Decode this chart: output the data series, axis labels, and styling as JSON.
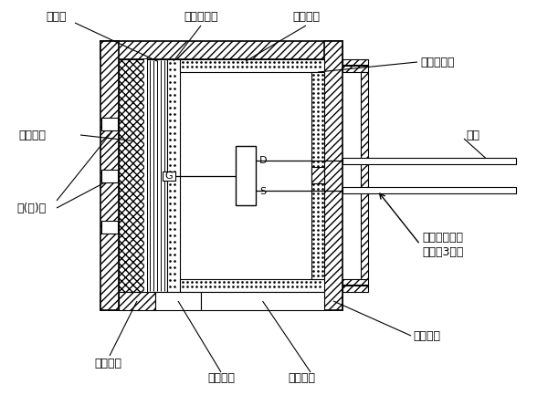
{
  "bg_color": "#ffffff",
  "line_color": "#000000",
  "labels": {
    "zhujiti": "驻极体",
    "jinshu_beidianj": "金属背电极",
    "changxiao_yingguan": "场效应管",
    "danmian_futongban": "单面敷铜板",
    "fangchen_geimo": "防尘隔膜",
    "yinjiao": "引脚",
    "yinqi_kong": "音(气)孔",
    "duankai_tongxiao": "断开此处铜箔\n即成为3引脚",
    "jinshu_waike": "金属外壳",
    "jinshu_dejuan": "金属垫圈",
    "suliao_dejuan": "塑料垫圈",
    "suliao_zhijia": "塑料支架",
    "D": "D",
    "G": "G",
    "S": "S"
  },
  "figsize": [
    6.0,
    4.33
  ],
  "dpi": 100
}
